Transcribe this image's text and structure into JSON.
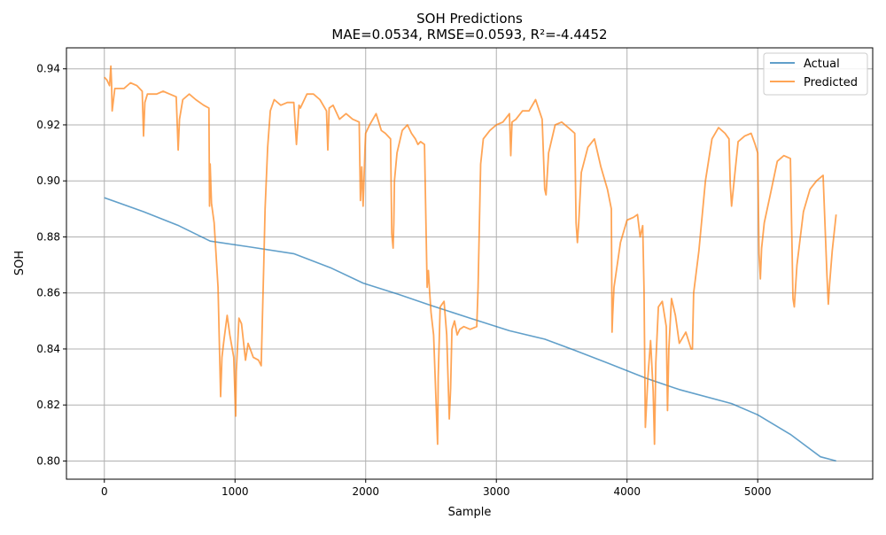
{
  "chart_data": {
    "type": "line",
    "title": "SOH Predictions",
    "subtitle": "MAE=0.0534, RMSE=0.0593, R²=-4.4452",
    "xlabel": "Sample",
    "ylabel": "SOH",
    "xlim": [
      -290,
      5880
    ],
    "ylim": [
      0.7935,
      0.9475
    ],
    "xticks": [
      0,
      1000,
      2000,
      3000,
      4000,
      5000
    ],
    "xtick_labels": [
      "0",
      "1000",
      "2000",
      "3000",
      "4000",
      "5000"
    ],
    "yticks": [
      0.8,
      0.82,
      0.84,
      0.86,
      0.88,
      0.9,
      0.92,
      0.94
    ],
    "ytick_labels": [
      "0.80",
      "0.82",
      "0.84",
      "0.86",
      "0.88",
      "0.90",
      "0.92",
      "0.94"
    ],
    "grid": true,
    "legend_position": "top-right",
    "colors": {
      "actual": "#1f77b4",
      "predicted": "#ff7f0e"
    },
    "series": [
      {
        "name": "Actual",
        "x": [
          0,
          300,
          570,
          810,
          1100,
          1450,
          1730,
          1980,
          2250,
          2500,
          2800,
          3100,
          3370,
          3600,
          3850,
          4150,
          4400,
          4800,
          5000,
          5250,
          5480,
          5600
        ],
        "y": [
          0.894,
          0.889,
          0.884,
          0.8785,
          0.8765,
          0.874,
          0.869,
          0.8635,
          0.8595,
          0.8555,
          0.851,
          0.8465,
          0.8435,
          0.8395,
          0.835,
          0.8295,
          0.8255,
          0.8205,
          0.8165,
          0.8095,
          0.8015,
          0.8
        ]
      },
      {
        "name": "Predicted",
        "x": [
          0,
          20,
          40,
          50,
          55,
          60,
          80,
          150,
          200,
          250,
          290,
          300,
          310,
          330,
          400,
          450,
          500,
          550,
          565,
          575,
          600,
          650,
          700,
          760,
          800,
          805,
          810,
          820,
          840,
          870,
          890,
          900,
          915,
          940,
          960,
          990,
          1005,
          1010,
          1030,
          1050,
          1080,
          1100,
          1140,
          1180,
          1200,
          1220,
          1230,
          1250,
          1270,
          1300,
          1350,
          1400,
          1450,
          1470,
          1490,
          1500,
          1550,
          1600,
          1650,
          1700,
          1710,
          1720,
          1750,
          1800,
          1850,
          1900,
          1950,
          1960,
          1970,
          1980,
          1985,
          1995,
          2000,
          2030,
          2080,
          2120,
          2150,
          2190,
          2200,
          2210,
          2215,
          2220,
          2240,
          2280,
          2320,
          2350,
          2380,
          2400,
          2420,
          2450,
          2470,
          2480,
          2490,
          2500,
          2520,
          2550,
          2555,
          2570,
          2600,
          2620,
          2640,
          2650,
          2660,
          2680,
          2700,
          2720,
          2750,
          2800,
          2850,
          2860,
          2870,
          2880,
          2900,
          2950,
          3000,
          3050,
          3100,
          3110,
          3120,
          3150,
          3200,
          3250,
          3300,
          3350,
          3370,
          3380,
          3400,
          3450,
          3500,
          3550,
          3600,
          3610,
          3620,
          3630,
          3650,
          3700,
          3750,
          3800,
          3850,
          3880,
          3885,
          3890,
          3900,
          3950,
          4000,
          4050,
          4080,
          4100,
          4120,
          4130,
          4140,
          4160,
          4180,
          4200,
          4210,
          4220,
          4240,
          4270,
          4300,
          4310,
          4320,
          4340,
          4370,
          4400,
          4450,
          4490,
          4500,
          4510,
          4550,
          4600,
          4650,
          4700,
          4750,
          4780,
          4790,
          4800,
          4850,
          4900,
          4950,
          4980,
          5000,
          5010,
          5020,
          5030,
          5050,
          5100,
          5150,
          5200,
          5250,
          5270,
          5280,
          5300,
          5350,
          5400,
          5450,
          5500,
          5530,
          5540,
          5550,
          5570,
          5600
        ],
        "y": [
          0.937,
          0.936,
          0.934,
          0.941,
          0.935,
          0.925,
          0.933,
          0.933,
          0.935,
          0.934,
          0.932,
          0.916,
          0.928,
          0.931,
          0.931,
          0.932,
          0.931,
          0.93,
          0.911,
          0.922,
          0.929,
          0.931,
          0.929,
          0.927,
          0.926,
          0.891,
          0.906,
          0.892,
          0.885,
          0.862,
          0.823,
          0.837,
          0.843,
          0.852,
          0.845,
          0.837,
          0.816,
          0.832,
          0.851,
          0.849,
          0.836,
          0.842,
          0.837,
          0.836,
          0.834,
          0.87,
          0.89,
          0.912,
          0.925,
          0.929,
          0.927,
          0.928,
          0.928,
          0.913,
          0.927,
          0.926,
          0.931,
          0.931,
          0.929,
          0.925,
          0.911,
          0.926,
          0.927,
          0.922,
          0.924,
          0.922,
          0.921,
          0.893,
          0.905,
          0.891,
          0.897,
          0.912,
          0.917,
          0.92,
          0.924,
          0.918,
          0.917,
          0.915,
          0.881,
          0.876,
          0.885,
          0.9,
          0.91,
          0.918,
          0.92,
          0.917,
          0.915,
          0.913,
          0.914,
          0.913,
          0.862,
          0.868,
          0.86,
          0.853,
          0.845,
          0.806,
          0.83,
          0.855,
          0.857,
          0.845,
          0.815,
          0.826,
          0.847,
          0.85,
          0.845,
          0.847,
          0.848,
          0.847,
          0.848,
          0.862,
          0.885,
          0.906,
          0.915,
          0.918,
          0.92,
          0.921,
          0.924,
          0.909,
          0.921,
          0.922,
          0.925,
          0.925,
          0.929,
          0.922,
          0.897,
          0.895,
          0.91,
          0.92,
          0.921,
          0.919,
          0.917,
          0.885,
          0.878,
          0.885,
          0.903,
          0.912,
          0.915,
          0.905,
          0.897,
          0.89,
          0.846,
          0.852,
          0.862,
          0.878,
          0.886,
          0.887,
          0.888,
          0.88,
          0.884,
          0.861,
          0.812,
          0.83,
          0.843,
          0.825,
          0.806,
          0.835,
          0.855,
          0.857,
          0.848,
          0.818,
          0.84,
          0.858,
          0.852,
          0.842,
          0.846,
          0.84,
          0.84,
          0.86,
          0.875,
          0.9,
          0.915,
          0.919,
          0.917,
          0.915,
          0.899,
          0.891,
          0.914,
          0.916,
          0.917,
          0.913,
          0.91,
          0.874,
          0.865,
          0.876,
          0.885,
          0.896,
          0.907,
          0.909,
          0.908,
          0.858,
          0.855,
          0.87,
          0.889,
          0.897,
          0.9,
          0.902,
          0.866,
          0.856,
          0.863,
          0.875,
          0.888
        ]
      }
    ]
  }
}
